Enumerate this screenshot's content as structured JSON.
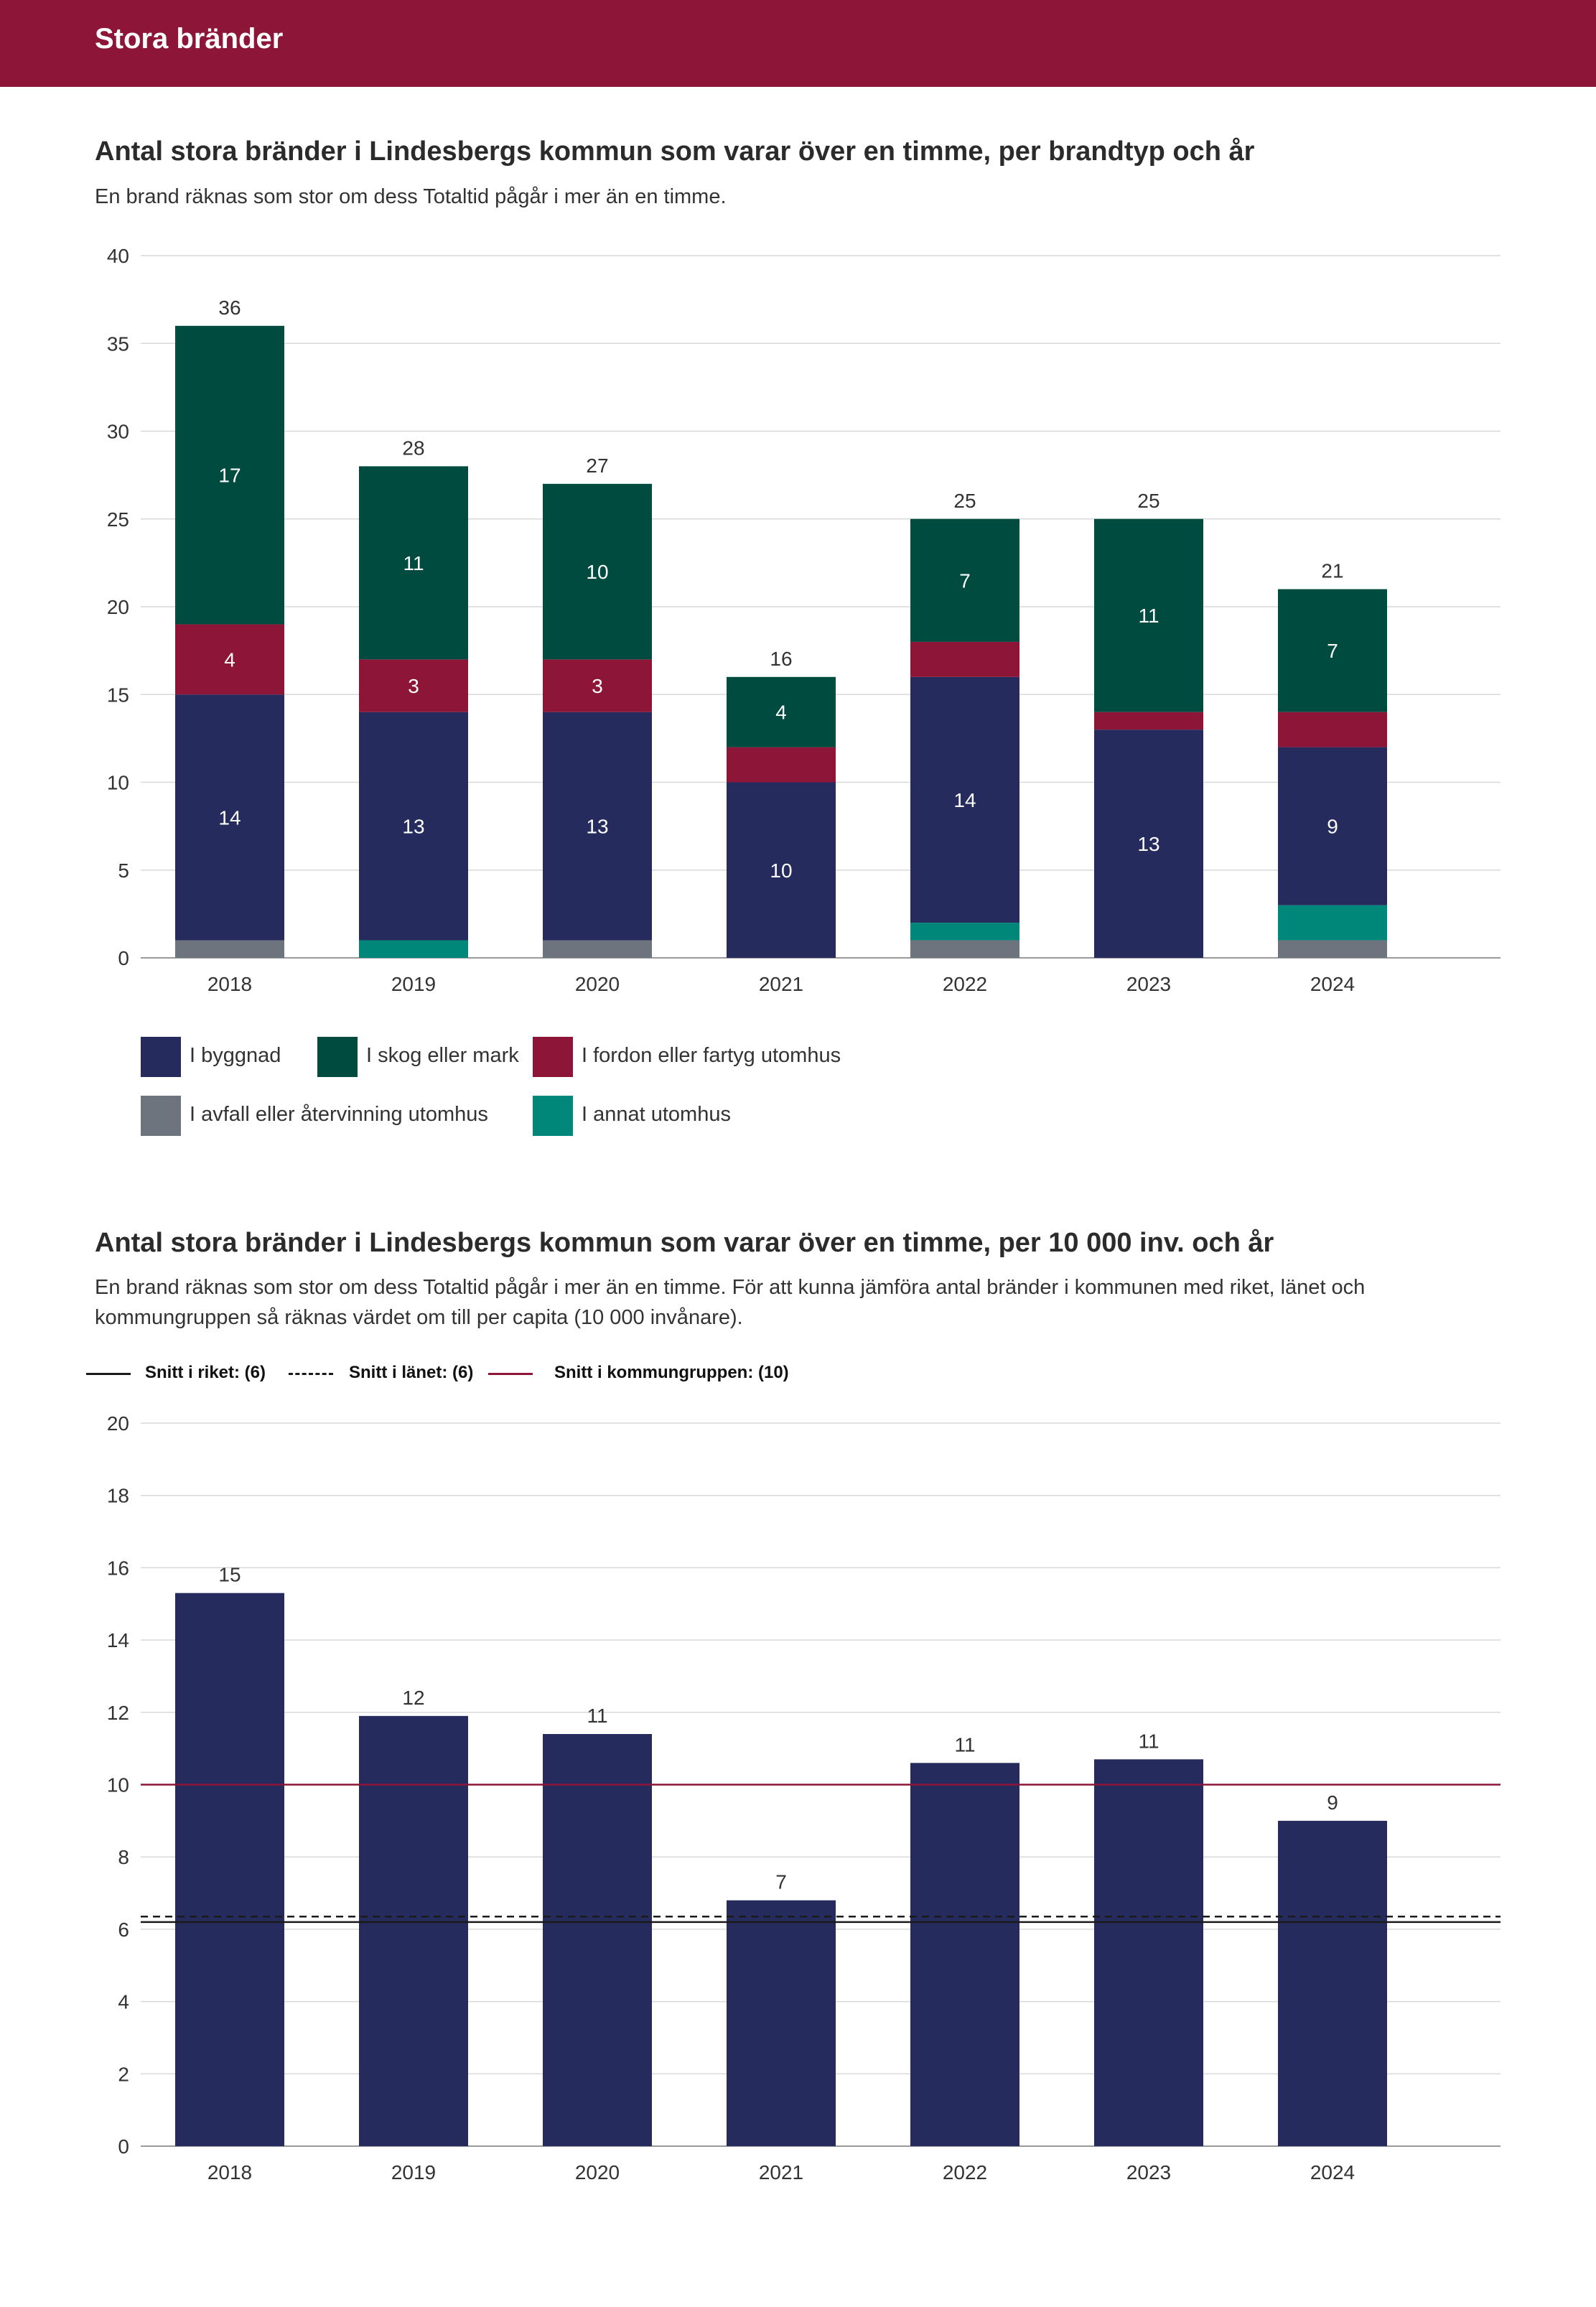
{
  "header": {
    "title": "Stora bränder"
  },
  "colors": {
    "header": "#8c1538",
    "byggnad": "#252b5c",
    "skog": "#004b40",
    "fordon": "#8c1538",
    "avfall": "#6e747e",
    "annat": "#00877a",
    "riket": "#1a1a1a",
    "lanet": "#1a1a1a",
    "kommungruppen": "#8c1538"
  },
  "chart1": {
    "title": "Antal stora bränder i Lindesbergs kommun som varar över en timme, per brandtyp och år",
    "subtitle": "En brand räknas som stor om dess Totaltid pågår i mer än en timme.",
    "legend": [
      {
        "key": "byggnad",
        "label": "I byggnad"
      },
      {
        "key": "skog",
        "label": "I skog eller mark"
      },
      {
        "key": "fordon",
        "label": "I fordon eller fartyg utomhus"
      },
      {
        "key": "avfall",
        "label": "I avfall eller återvinning utomhus"
      },
      {
        "key": "annat",
        "label": "I annat utomhus"
      }
    ]
  },
  "chart2": {
    "title": "Antal stora bränder i Lindesbergs kommun som varar över en timme, per 10 000 inv. och år",
    "subtitle": "En brand räknas som stor om dess Totaltid pågår i mer än en timme. För att kunna jämföra antal bränder i kommunen med riket, länet och kommungruppen så räknas värdet om till per capita (10 000 invånare).",
    "ref_legend": [
      {
        "key": "riket",
        "label": "Snitt i riket: (6)",
        "style": "solid"
      },
      {
        "key": "lanet",
        "label": "Snitt i länet: (6)",
        "style": "dashed"
      },
      {
        "key": "kommungruppen",
        "label": "Snitt i kommungruppen: (10)",
        "style": "solid"
      }
    ]
  },
  "chart_data": [
    {
      "type": "bar",
      "stacked": true,
      "title": "Antal stora bränder i Lindesbergs kommun som varar över en timme, per brandtyp och år",
      "categories": [
        "2018",
        "2019",
        "2020",
        "2021",
        "2022",
        "2023",
        "2024"
      ],
      "ylim": [
        0,
        40
      ],
      "yticks": [
        0,
        5,
        10,
        15,
        20,
        25,
        30,
        35,
        40
      ],
      "grid": true,
      "legend_position": "bottom",
      "series": [
        {
          "name": "I avfall eller återvinning utomhus",
          "key": "avfall",
          "values": [
            1,
            0,
            1,
            0,
            1,
            0,
            1
          ],
          "show_labels": false
        },
        {
          "name": "I annat utomhus",
          "key": "annat",
          "values": [
            0,
            1,
            0,
            0,
            1,
            0,
            2
          ],
          "show_labels": false
        },
        {
          "name": "I byggnad",
          "key": "byggnad",
          "values": [
            14,
            13,
            13,
            10,
            14,
            13,
            9
          ],
          "show_labels": true
        },
        {
          "name": "I fordon eller fartyg utomhus",
          "key": "fordon",
          "values": [
            4,
            3,
            3,
            2,
            2,
            1,
            2
          ],
          "show_labels": true,
          "label_min": 3
        },
        {
          "name": "I skog eller mark",
          "key": "skog",
          "values": [
            17,
            11,
            10,
            4,
            7,
            11,
            7
          ],
          "show_labels": true
        }
      ],
      "totals": [
        36,
        28,
        27,
        16,
        25,
        25,
        21
      ]
    },
    {
      "type": "bar",
      "title": "Antal stora bränder i Lindesbergs kommun som varar över en timme, per 10 000 inv. och år",
      "categories": [
        "2018",
        "2019",
        "2020",
        "2021",
        "2022",
        "2023",
        "2024"
      ],
      "values": [
        15.3,
        11.9,
        11.4,
        6.8,
        10.6,
        10.7,
        9.0
      ],
      "labels": [
        "15",
        "12",
        "11",
        "7",
        "11",
        "11",
        "9"
      ],
      "ylim": [
        0,
        20
      ],
      "yticks": [
        0,
        2,
        4,
        6,
        8,
        10,
        12,
        14,
        16,
        18,
        20
      ],
      "grid": true,
      "reference_lines": [
        {
          "key": "riket",
          "value": 6.2,
          "style": "solid"
        },
        {
          "key": "lanet",
          "value": 6.35,
          "style": "dashed"
        },
        {
          "key": "kommungruppen",
          "value": 10.0,
          "style": "solid"
        }
      ]
    }
  ]
}
